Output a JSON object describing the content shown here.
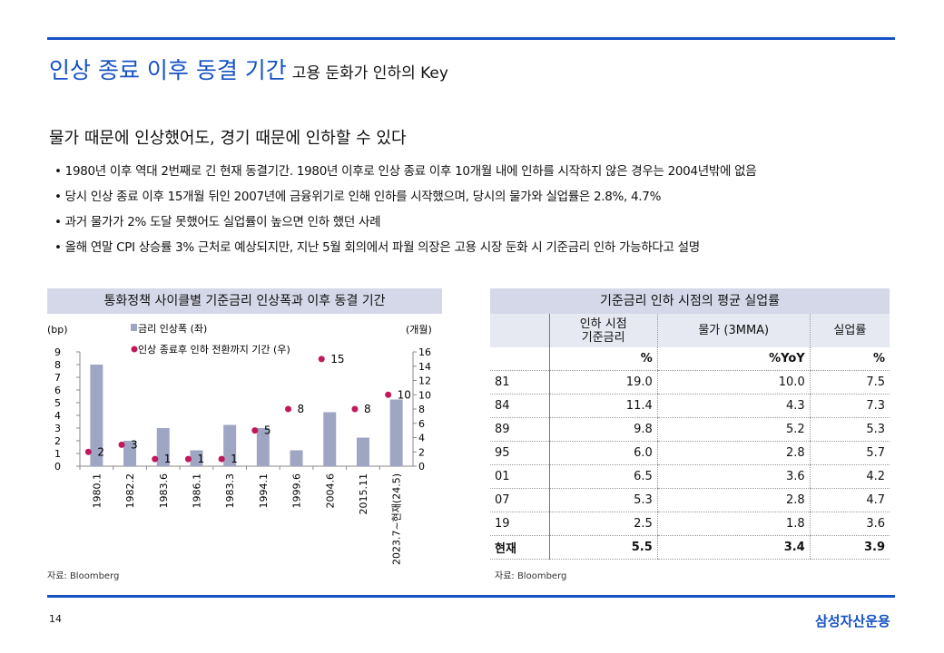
{
  "header": {
    "title": "인상 종료 이후 동결 기간",
    "subtitle": "고용 둔화가 인하의 Key"
  },
  "headline": "물가 때문에 인상했어도, 경기 때문에 인하할 수 있다",
  "bullets": [
    "• 1980년 이후 역대 2번째로 긴 현재 동결기간. 1980년 이후로 인상 종료 이후 10개월 내에 인하를 시작하지 않은 경우는 2004년밖에 없음",
    "• 당시 인상 종료 이후 15개월 뒤인 2007년에 금융위기로 인해 인하를 시작했으며, 당시의 물가와 실업률은 2.8%, 4.7%",
    "• 과거 물가가 2% 도달 못했어도 실업률이 높으면 인하 했던 사례",
    "• 올해 연말 CPI 상승률 3% 근처로 예상되지만, 지난 5월 회의에서 파월 의장은 고용 시장 둔화 시 기준금리 인하 가능하다고 설명"
  ],
  "chart_data": {
    "type": "bar",
    "title": "통화정책 사이클별 기준금리 인상폭과 이후 동결 기간",
    "categories": [
      "1980.1",
      "1982.2",
      "1983.6",
      "1986.1",
      "1983.3",
      "1994.1",
      "1999.6",
      "2004.6",
      "2015.11",
      "2023.7~현재(24.5)"
    ],
    "ylabel": "(bp)",
    "y2label": "(개월)",
    "ylim": [
      0,
      9
    ],
    "y2lim": [
      0,
      16
    ],
    "yticks": [
      "0",
      "1",
      "2",
      "3",
      "4",
      "5",
      "6",
      "7",
      "8",
      "9"
    ],
    "y2ticks": [
      "0",
      "2",
      "4",
      "6",
      "8",
      "10",
      "12",
      "14",
      "16"
    ],
    "series": [
      {
        "name": "금리 인상폭 (좌)",
        "type": "bar",
        "axis": "left",
        "color": "#9fa6c4",
        "values": [
          8.0,
          2.0,
          3.0,
          1.25,
          3.25,
          3.0,
          1.25,
          4.25,
          2.25,
          5.25
        ]
      },
      {
        "name": "인상 종료후 인하 전환까지 기간 (우)",
        "type": "scatter",
        "axis": "right",
        "color": "#c0185a",
        "values": [
          2,
          3,
          1,
          1,
          1,
          5,
          8,
          15,
          8,
          10
        ],
        "labels": [
          "2",
          "3",
          "1",
          "1",
          "1",
          "5",
          "8",
          "15",
          "8",
          "10"
        ]
      }
    ],
    "source": "자료: Bloomberg"
  },
  "table": {
    "title": "기준금리 인하 시점의 평균 실업률",
    "headers": [
      "",
      "인하 시점\n기준금리",
      "물가 (3MMA)",
      "실업률"
    ],
    "units": [
      "",
      "%",
      "%YoY",
      "%"
    ],
    "rows": [
      [
        "81",
        "19.0",
        "10.0",
        "7.5"
      ],
      [
        "84",
        "11.4",
        "4.3",
        "7.3"
      ],
      [
        "89",
        "9.8",
        "5.2",
        "5.3"
      ],
      [
        "95",
        "6.0",
        "2.8",
        "5.7"
      ],
      [
        "01",
        "6.5",
        "3.6",
        "4.2"
      ],
      [
        "07",
        "5.3",
        "2.8",
        "4.7"
      ],
      [
        "19",
        "2.5",
        "1.8",
        "3.6"
      ],
      [
        "현재",
        "5.5",
        "3.4",
        "3.9"
      ]
    ],
    "source": "자료: Bloomberg"
  },
  "footer": {
    "page": "14",
    "brand": "삼성자산운용"
  }
}
